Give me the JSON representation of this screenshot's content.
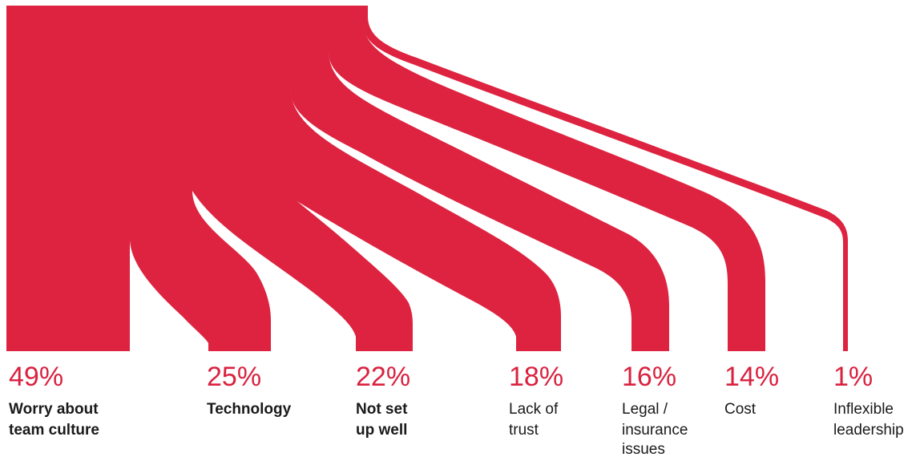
{
  "chart_data": {
    "type": "sankey",
    "title": "",
    "unit": "%",
    "flow_color": "#dd2340",
    "categories": [
      {
        "value": 49,
        "label": "49%",
        "name_lines": [
          "Worry about",
          "team culture"
        ],
        "bold": true
      },
      {
        "value": 25,
        "label": "25%",
        "name_lines": [
          "Technology"
        ],
        "bold": true
      },
      {
        "value": 22,
        "label": "22%",
        "name_lines": [
          "Not set",
          "up well"
        ],
        "bold": true
      },
      {
        "value": 18,
        "label": "18%",
        "name_lines": [
          "Lack of",
          "trust"
        ],
        "bold": false
      },
      {
        "value": 16,
        "label": "16%",
        "name_lines": [
          "Legal /",
          "insurance",
          "issues"
        ],
        "bold": false
      },
      {
        "value": 14,
        "label": "14%",
        "name_lines": [
          "Cost"
        ],
        "bold": false
      },
      {
        "value": 1,
        "label": "1%",
        "name_lines": [
          "Inflexible",
          "leadership"
        ],
        "bold": false
      }
    ]
  }
}
